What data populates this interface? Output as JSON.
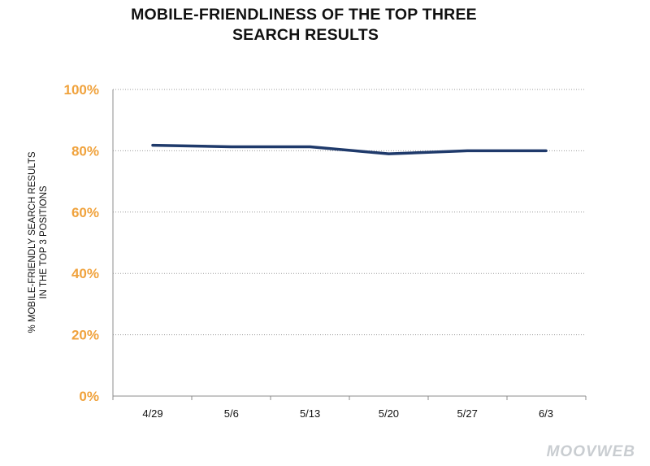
{
  "chart_data": {
    "type": "line",
    "title_lines": [
      "MOBILE-FRIENDLINESS OF THE TOP THREE",
      "SEARCH RESULTS"
    ],
    "ylabel_lines": [
      "% MOBILE-FRIENDLY SEARCH RESULTS",
      "IN THE TOP 3 POSITIONS"
    ],
    "xlabel": "",
    "categories": [
      "4/29",
      "5/6",
      "5/13",
      "5/20",
      "5/27",
      "6/3"
    ],
    "series": [
      {
        "values": [
          81.8,
          81.3,
          81.3,
          79.0,
          80.0,
          80.0
        ]
      }
    ],
    "ylim": [
      0,
      100
    ],
    "yticks": [
      "0%",
      "20%",
      "40%",
      "60%",
      "80%",
      "100%"
    ],
    "grid": "horizontal-dotted",
    "colors": {
      "line": "#1f3a6b",
      "ytick": "#f0a23c",
      "grid": "#9a9a9a",
      "axis": "#8c8c8c"
    }
  },
  "watermark": "MOOVWEB"
}
